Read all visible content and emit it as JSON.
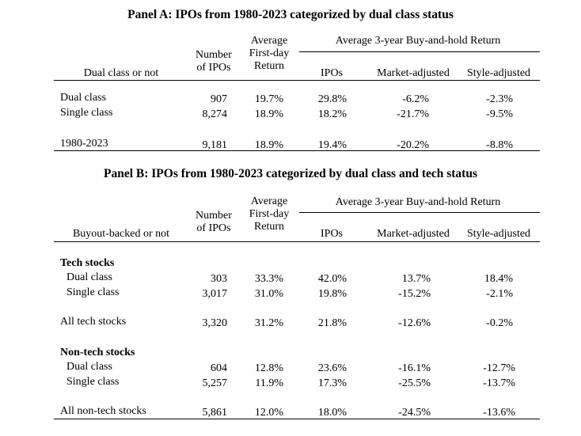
{
  "panel_a": {
    "title": "Panel A: IPOs from 1980-2023 categorized by dual class status",
    "headers": {
      "group": "Dual class or not",
      "number": [
        "Number",
        "of IPOs"
      ],
      "first_day": [
        "Average",
        "First-day",
        "Return"
      ],
      "bh_group": "Average 3-year Buy-and-hold Return",
      "ipos": "IPOs",
      "market": "Market-adjusted",
      "style": "Style-adjusted"
    },
    "rows": [
      {
        "label": "Dual class",
        "number": "907",
        "first_day": "19.7%",
        "ipos": "29.8%",
        "market": "-6.2%",
        "style": "-2.3%"
      },
      {
        "label": "Single class",
        "number": "8,274",
        "first_day": "18.9%",
        "ipos": "18.2%",
        "market": "-21.7%",
        "style": "-9.5%"
      },
      {
        "label": "1980-2023",
        "number": "9,181",
        "first_day": "18.9%",
        "ipos": "19.4%",
        "market": "-20.2%",
        "style": "-8.8%"
      }
    ]
  },
  "panel_b": {
    "title": "Panel B: IPOs from 1980-2023 categorized by dual class and tech status",
    "headers": {
      "group": "Buyout-backed or not",
      "number": [
        "Number",
        "of IPOs"
      ],
      "first_day": [
        "Average",
        "First-day",
        "Return"
      ],
      "bh_group": "Average 3-year Buy-and-hold Return",
      "ipos": "IPOs",
      "market": "Market-adjusted",
      "style": "Style-adjusted"
    },
    "sections": [
      {
        "heading": "Tech stocks",
        "rows": [
          {
            "label": "Dual class",
            "number": "303",
            "first_day": "33.3%",
            "ipos": "42.0%",
            "market": "13.7%",
            "style": "18.4%"
          },
          {
            "label": "Single class",
            "number": "3,017",
            "first_day": "31.0%",
            "ipos": "19.8%",
            "market": "-15.2%",
            "style": "-2.1%"
          }
        ],
        "total": {
          "label": "All tech stocks",
          "number": "3,320",
          "first_day": "31.2%",
          "ipos": "21.8%",
          "market": "-12.6%",
          "style": "-0.2%"
        }
      },
      {
        "heading": "Non-tech stocks",
        "rows": [
          {
            "label": "Dual class",
            "number": "604",
            "first_day": "12.8%",
            "ipos": "23.6%",
            "market": "-16.1%",
            "style": "-12.7%"
          },
          {
            "label": "Single class",
            "number": "5,257",
            "first_day": "11.9%",
            "ipos": "17.3%",
            "market": "-25.5%",
            "style": "-13.7%"
          }
        ],
        "total": {
          "label": "All non-tech stocks",
          "number": "5,861",
          "first_day": "12.0%",
          "ipos": "18.0%",
          "market": "-24.5%",
          "style": "-13.6%"
        }
      }
    ]
  }
}
